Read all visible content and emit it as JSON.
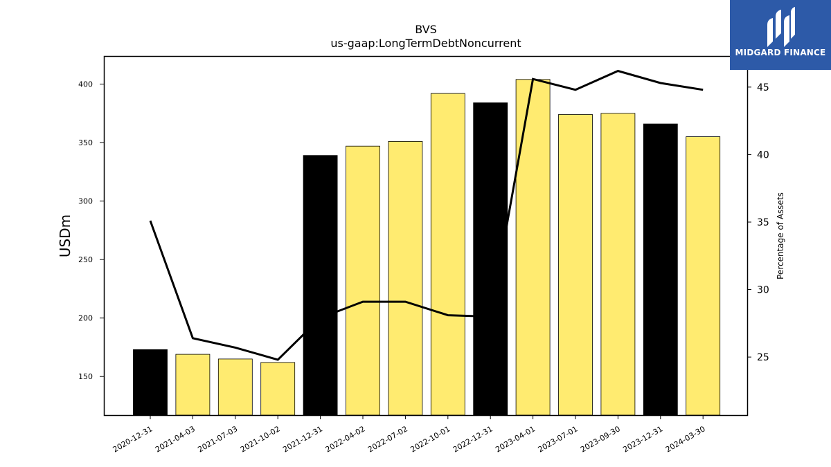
{
  "brand": {
    "name": "MIDGARD FINANCE",
    "color": "#2d5aa8"
  },
  "chart_data": {
    "type": "bar",
    "title": "BVS",
    "subtitle": "us-gaap:LongTermDebtNoncurrent",
    "ylabel": "USDm",
    "y2label": "Percentage of Assets",
    "ylim": [
      117,
      424
    ],
    "y2lim": [
      20.7,
      47.3
    ],
    "yticks": [
      150,
      200,
      250,
      300,
      350,
      400
    ],
    "y2ticks": [
      25,
      30,
      35,
      40,
      45
    ],
    "categories": [
      "2020-12-31",
      "2021-04-03",
      "2021-07-03",
      "2021-10-02",
      "2021-12-31",
      "2022-04-02",
      "2022-07-02",
      "2022-10-01",
      "2022-12-31",
      "2023-04-01",
      "2023-07-01",
      "2023-09-30",
      "2023-12-31",
      "2024-03-30"
    ],
    "series": [
      {
        "kind": "bar",
        "values": [
          173,
          169,
          165,
          162,
          339,
          347,
          351,
          392,
          384,
          404,
          374,
          375,
          366,
          355
        ],
        "colors": [
          "#000000",
          "#ffeb70",
          "#ffeb70",
          "#ffeb70",
          "#000000",
          "#ffeb70",
          "#ffeb70",
          "#ffeb70",
          "#000000",
          "#ffeb70",
          "#ffeb70",
          "#ffeb70",
          "#000000",
          "#ffeb70"
        ]
      },
      {
        "kind": "line",
        "axis": "right",
        "color": "#000000",
        "values": [
          35.1,
          26.4,
          25.7,
          24.8,
          27.9,
          29.1,
          29.1,
          28.1,
          28.0,
          45.6,
          44.8,
          46.2,
          45.3,
          44.8
        ]
      }
    ],
    "grid": false,
    "legend": "none"
  }
}
